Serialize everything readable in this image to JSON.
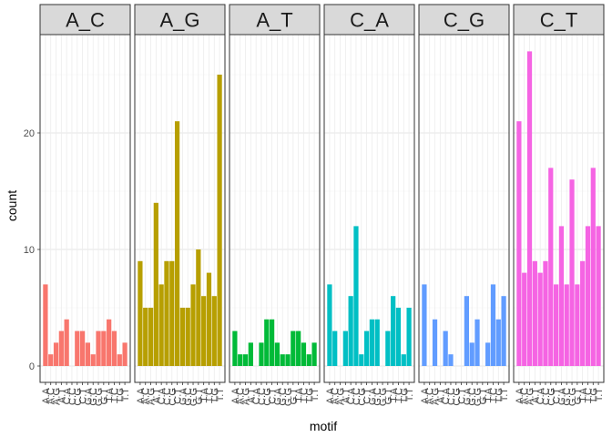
{
  "chart_data": {
    "type": "bar",
    "xlabel": "motif",
    "ylabel": "count",
    "ylim": [
      0,
      28
    ],
    "yticks": [
      0,
      10,
      20
    ],
    "grid": true,
    "colors": {
      "A_C": "#F8766D",
      "A_G": "#B79F00",
      "A_T": "#00BA38",
      "C_A": "#00BFC4",
      "C_G": "#619CFF",
      "C_T": "#F564E3"
    },
    "categories": [
      "A.A",
      "A.C",
      "A.G",
      "A.T",
      "C.A",
      "C.C",
      "C.G",
      "C.T",
      "G.A",
      "G.C",
      "G.G",
      "G.T",
      "T.A",
      "T.C",
      "T.G",
      "T.T"
    ],
    "tick_labels": [
      "A.A",
      "A.C",
      "A.G",
      "A.T",
      "C.A",
      "C.C",
      "C.G",
      "C.T",
      "G.A",
      "G.C",
      "G.G",
      "G.T",
      "T.A",
      "T.C",
      "T.G",
      "T.T"
    ],
    "series": [
      {
        "name": "A_C",
        "values": [
          7,
          1,
          2,
          3,
          4,
          0,
          3,
          3,
          2,
          1,
          3,
          3,
          4,
          3,
          1,
          2
        ]
      },
      {
        "name": "A_G",
        "values": [
          9,
          5,
          5,
          14,
          7,
          9,
          9,
          21,
          5,
          5,
          7,
          10,
          6,
          8,
          6,
          25
        ]
      },
      {
        "name": "A_T",
        "values": [
          3,
          1,
          1,
          2,
          0,
          2,
          4,
          4,
          2,
          1,
          1,
          3,
          3,
          2,
          1,
          2
        ]
      },
      {
        "name": "C_A",
        "values": [
          7,
          3,
          0,
          3,
          6,
          12,
          1,
          3,
          4,
          4,
          0,
          3,
          6,
          5,
          1,
          5
        ]
      },
      {
        "name": "C_G",
        "values": [
          7,
          0,
          4,
          0,
          3,
          1,
          0,
          0,
          6,
          2,
          4,
          0,
          2,
          7,
          4,
          6
        ]
      },
      {
        "name": "C_T",
        "values": [
          21,
          8,
          27,
          9,
          8,
          9,
          17,
          7,
          12,
          7,
          16,
          7,
          9,
          12,
          17,
          12
        ]
      }
    ]
  }
}
